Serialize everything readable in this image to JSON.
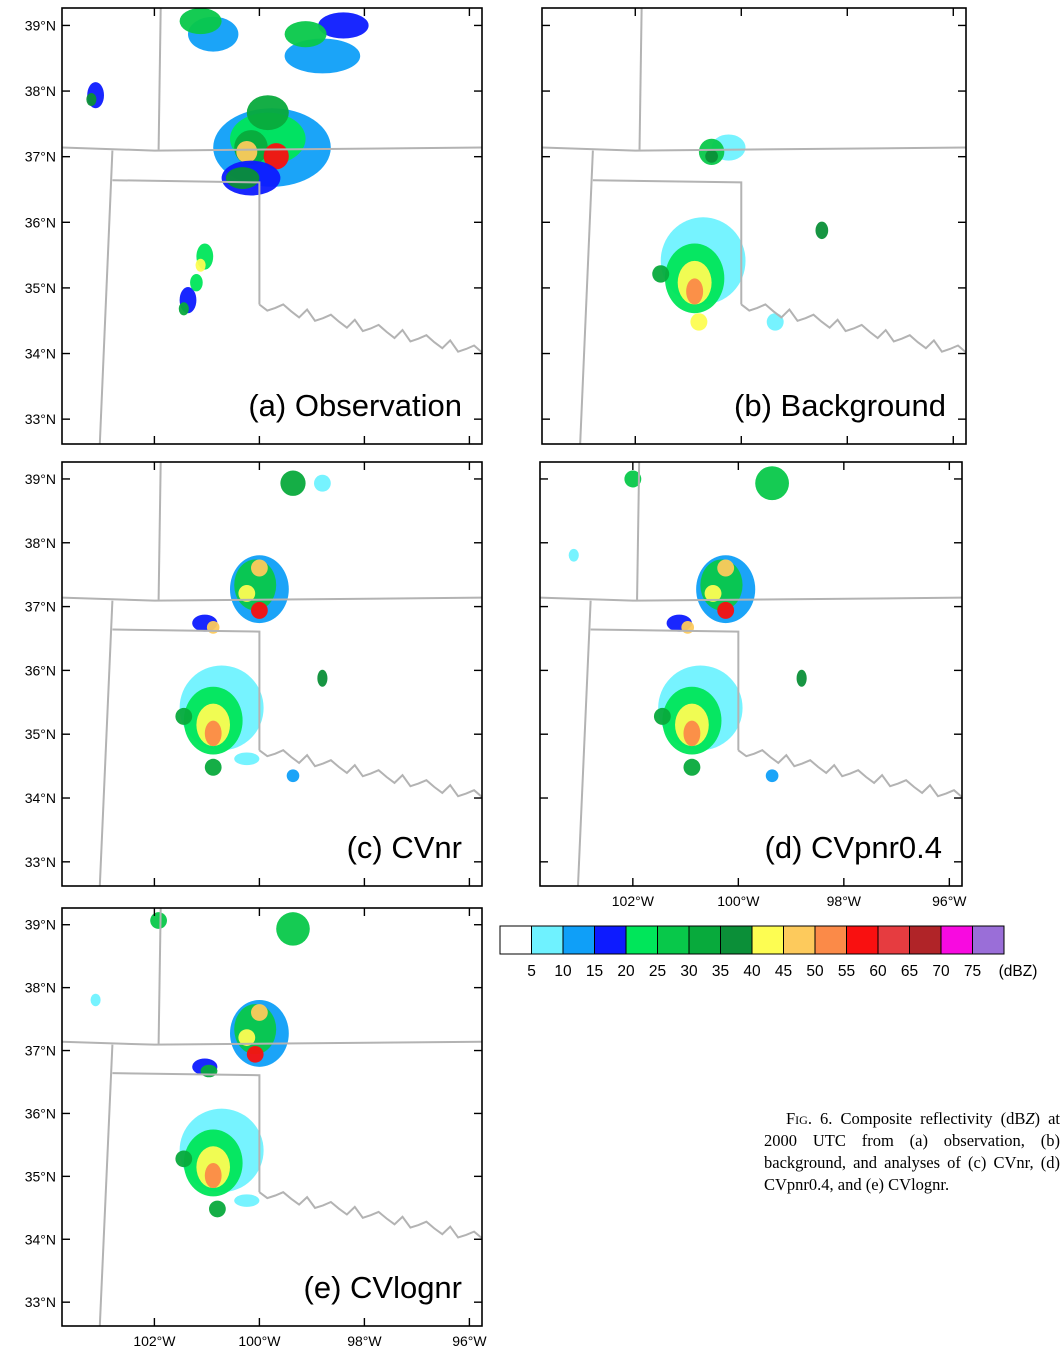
{
  "panels": [
    {
      "id": "a",
      "label": "(a) Observation",
      "show_x_labels": false
    },
    {
      "id": "b",
      "label": "(b) Background",
      "show_x_labels": false
    },
    {
      "id": "c",
      "label": "(c) CVnr",
      "show_x_labels": false
    },
    {
      "id": "d",
      "label": "(d) CVpnr0.4",
      "show_x_labels": true
    },
    {
      "id": "e",
      "label": "(e) CVlognr",
      "show_x_labels": true
    }
  ],
  "axes": {
    "lat_labels": [
      "39°N",
      "38°N",
      "37°N",
      "36°N",
      "35°N",
      "34°N",
      "33°N"
    ],
    "lon_labels": [
      "102°W",
      "100°W",
      "98°W",
      "96°W"
    ]
  },
  "colorbar": {
    "colors": [
      "#ffffff",
      "#6ff2ff",
      "#0f9ff8",
      "#0d1bff",
      "#00e65a",
      "#08c84a",
      "#08aa3c",
      "#0b8f38",
      "#fdfd52",
      "#fdca5c",
      "#fb8a48",
      "#f91010",
      "#e63c40",
      "#b02428",
      "#f80ae0",
      "#9a6ed8"
    ],
    "labels": [
      "5",
      "10",
      "15",
      "20",
      "25",
      "30",
      "35",
      "40",
      "45",
      "50",
      "55",
      "60",
      "65",
      "70",
      "75"
    ],
    "unit": "(dBZ)"
  },
  "caption": {
    "fig": "Fig. 6.",
    "text_1": " Composite reflectivity (dB",
    "z": "Z",
    "text_2": ") at 2000 UTC from (a) observation, (b) background, and analyses of (c) CVnr, (d) CVpnr0.4, and (e) CVlognr."
  }
}
